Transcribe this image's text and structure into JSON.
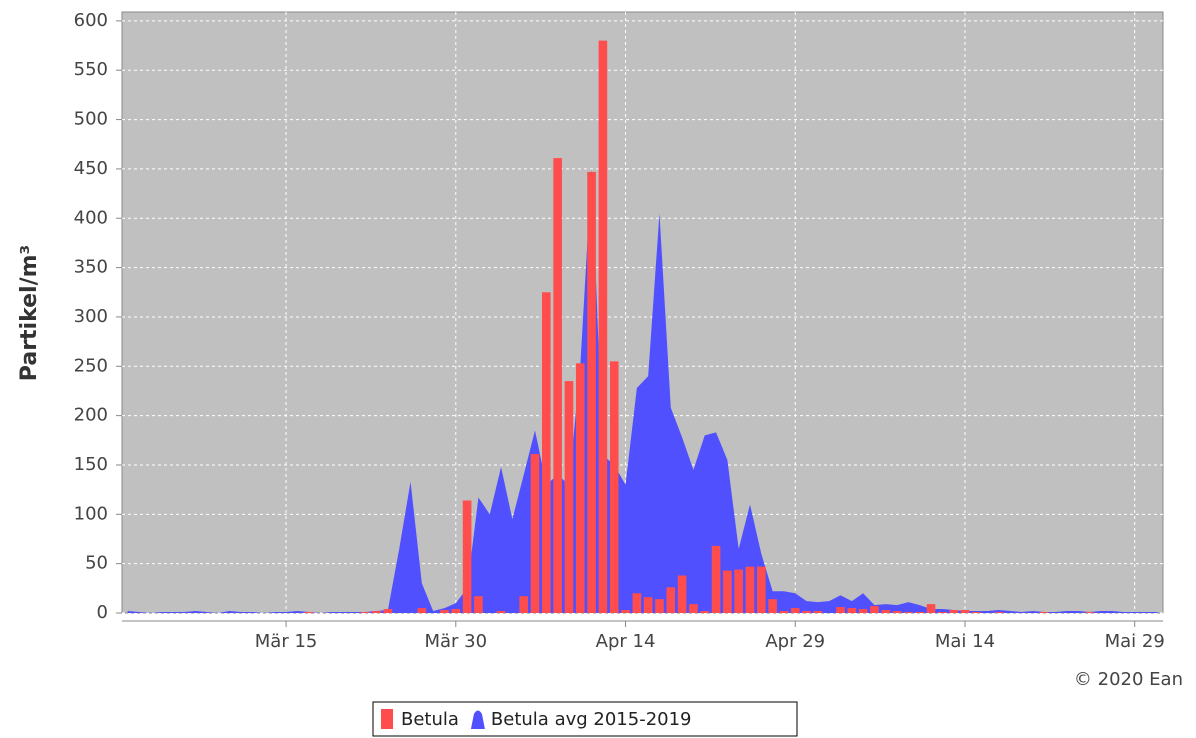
{
  "chart_data": {
    "type": "bar",
    "y_label": "Partikel/m³",
    "credit": "© 2020 Ean",
    "categories": [
      null,
      null,
      null,
      null,
      null,
      null,
      null,
      null,
      null,
      null,
      null,
      null,
      null,
      null,
      "Mär 15",
      null,
      null,
      null,
      null,
      null,
      null,
      null,
      null,
      null,
      null,
      null,
      null,
      null,
      null,
      "Mär 30",
      null,
      null,
      null,
      null,
      null,
      null,
      null,
      null,
      null,
      null,
      null,
      null,
      null,
      null,
      "Apr 14",
      null,
      null,
      null,
      null,
      null,
      null,
      null,
      null,
      null,
      null,
      null,
      null,
      null,
      null,
      "Apr 29",
      null,
      null,
      null,
      null,
      null,
      null,
      null,
      null,
      null,
      null,
      null,
      null,
      null,
      null,
      "Mai 14",
      null,
      null,
      null,
      null,
      null,
      null,
      null,
      null,
      null,
      null,
      null,
      null,
      null,
      null,
      "Mai 29",
      null,
      null
    ],
    "series": [
      {
        "name": "Betula",
        "type": "bar",
        "color": "#ff4d4d",
        "values": [
          0,
          0,
          0,
          0,
          0,
          0,
          0,
          0,
          0,
          0,
          0,
          0,
          0,
          0,
          0,
          0,
          1,
          0,
          0,
          0,
          0,
          1,
          2,
          4,
          0,
          0,
          5,
          0,
          3,
          4,
          114,
          17,
          0,
          2,
          0,
          17,
          161,
          325,
          461,
          235,
          253,
          447,
          580,
          255,
          3,
          20,
          16,
          14,
          26,
          38,
          9,
          2,
          68,
          43,
          44,
          47,
          47,
          14,
          2,
          5,
          2,
          2,
          0,
          6,
          5,
          4,
          7,
          3,
          2,
          1,
          1,
          9,
          1,
          3,
          3,
          1,
          0,
          1,
          0,
          0,
          0,
          1,
          0,
          0,
          0,
          1,
          0,
          0,
          0,
          0,
          0,
          0
        ]
      },
      {
        "name": "Betula avg 2015-2019",
        "type": "area",
        "color": "#5050ff",
        "values": [
          2,
          1,
          0,
          1,
          1,
          1,
          2,
          1,
          0,
          2,
          1,
          1,
          0,
          1,
          1,
          2,
          1,
          0,
          1,
          1,
          1,
          1,
          2,
          3,
          65,
          133,
          30,
          2,
          5,
          10,
          25,
          117,
          100,
          148,
          95,
          140,
          185,
          130,
          140,
          130,
          250,
          450,
          160,
          150,
          130,
          228,
          240,
          405,
          208,
          178,
          145,
          180,
          183,
          155,
          65,
          110,
          60,
          22,
          22,
          20,
          12,
          11,
          12,
          18,
          12,
          20,
          8,
          9,
          8,
          11,
          8,
          4,
          4,
          3,
          2,
          2,
          2,
          3,
          2,
          1,
          2,
          1,
          1,
          2,
          2,
          1,
          2,
          2,
          1,
          1,
          1,
          1
        ]
      }
    ],
    "ylim": [
      0,
      609
    ],
    "yticks": [
      0,
      50,
      100,
      150,
      200,
      250,
      300,
      350,
      400,
      450,
      500,
      550,
      600
    ],
    "grid": true
  }
}
